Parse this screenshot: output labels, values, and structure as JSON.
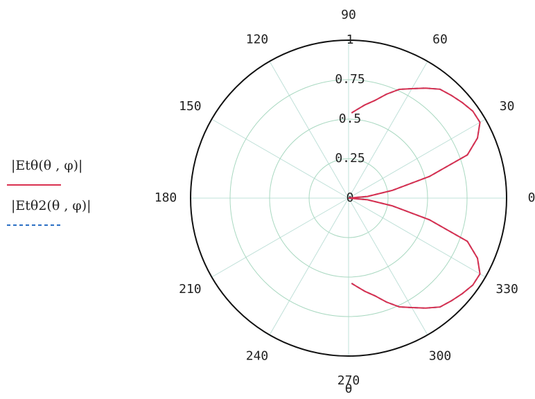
{
  "chart_data": {
    "type": "polar",
    "xlabel": "θ",
    "theta": [
      272,
      275,
      280,
      285,
      290,
      295,
      300,
      305,
      310,
      315,
      320,
      325,
      330,
      335,
      340,
      345,
      350,
      355,
      360,
      5,
      10,
      15,
      20,
      25,
      30,
      35,
      40,
      45,
      50,
      55,
      60,
      65,
      70,
      75,
      80,
      85,
      88
    ],
    "series": [
      {
        "name": "|Etθ(θ , φ)|",
        "color": "#d9304f",
        "dash": false,
        "values": [
          0.54,
          0.56,
          0.6,
          0.64,
          0.7,
          0.76,
          0.8,
          0.85,
          0.9,
          0.92,
          0.94,
          0.96,
          0.96,
          0.9,
          0.8,
          0.53,
          0.28,
          0.12,
          0,
          0.12,
          0.28,
          0.53,
          0.8,
          0.9,
          0.96,
          0.96,
          0.94,
          0.92,
          0.9,
          0.85,
          0.8,
          0.76,
          0.7,
          0.64,
          0.6,
          0.56,
          0.54
        ]
      },
      {
        "name": "|Etθ2(θ , φ)|",
        "color": "#2a6fc4",
        "dash": true,
        "values": [
          0.54,
          0.56,
          0.6,
          0.64,
          0.7,
          0.76,
          0.8,
          0.85,
          0.9,
          0.92,
          0.94,
          0.96,
          0.96,
          0.9,
          0.8,
          0.53,
          0.28,
          0.12,
          0,
          0.12,
          0.28,
          0.53,
          0.8,
          0.9,
          0.96,
          0.96,
          0.94,
          0.92,
          0.9,
          0.85,
          0.8,
          0.76,
          0.7,
          0.64,
          0.6,
          0.56,
          0.54
        ]
      }
    ],
    "rlim": [
      0,
      1
    ],
    "rticks": [
      0,
      0.25,
      0.5,
      0.75,
      1
    ],
    "thetaticks": [
      0,
      30,
      60,
      90,
      120,
      150,
      180,
      210,
      240,
      270,
      300,
      330
    ],
    "grid": true
  }
}
